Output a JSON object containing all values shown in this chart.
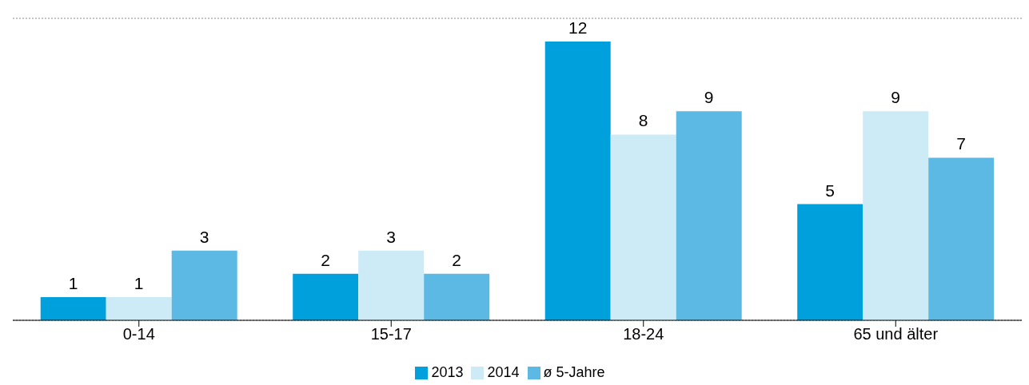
{
  "chart_data": {
    "type": "bar",
    "categories": [
      "0-14",
      "15-17",
      "18-24",
      "65 und älter"
    ],
    "series": [
      {
        "name": "2013",
        "color": "#00a0dc",
        "values": [
          1,
          2,
          12,
          5
        ]
      },
      {
        "name": "2014",
        "color": "#cdeaf7",
        "values": [
          1,
          3,
          8,
          9
        ]
      },
      {
        "name": "ø 5-Jahre",
        "color": "#5cb9e4",
        "values": [
          3,
          2,
          9,
          7
        ]
      }
    ],
    "ylim": [
      0,
      13
    ],
    "grid": "y",
    "tick_labels": "x",
    "data_labels": true,
    "legend": "bottom"
  }
}
